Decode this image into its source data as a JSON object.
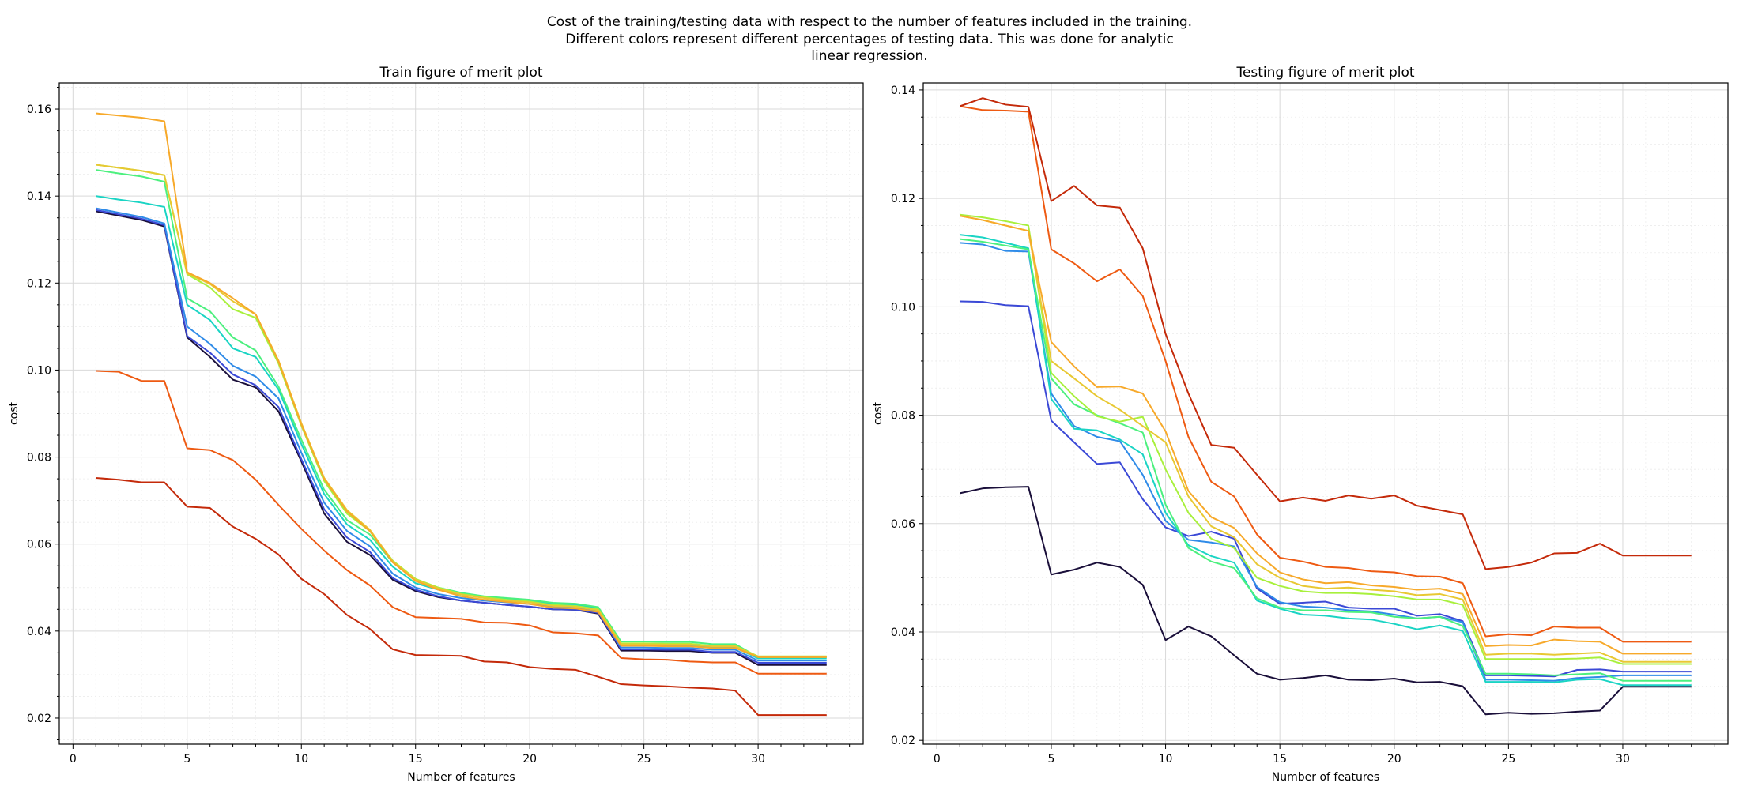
{
  "figure": {
    "suptitle_lines": [
      "Cost of the training/testing data with respect to the number of features included in the training.",
      "Different colors represent different percentages of testing data. This was done for analytic",
      "linear regression."
    ]
  },
  "chart_data": [
    {
      "type": "line",
      "title": "Train figure of merit plot",
      "xlabel": "Number of features",
      "ylabel": "cost",
      "xlim": [
        -0.6,
        34.6
      ],
      "ylim": [
        0.014,
        0.166
      ],
      "xticks": [
        0,
        5,
        10,
        15,
        20,
        25,
        30
      ],
      "yticks": [
        0.02,
        0.04,
        0.06,
        0.08,
        0.1,
        0.12,
        0.14,
        0.16
      ],
      "ytick_labels": [
        "0.02",
        "0.04",
        "0.06",
        "0.08",
        "0.10",
        "0.12",
        "0.14",
        "0.16"
      ],
      "grid": true,
      "x": [
        1,
        2,
        3,
        4,
        5,
        6,
        7,
        8,
        9,
        10,
        11,
        12,
        13,
        14,
        15,
        16,
        17,
        18,
        19,
        20,
        21,
        22,
        23,
        24,
        25,
        26,
        27,
        28,
        29,
        30,
        31,
        32,
        33
      ],
      "series": [
        {
          "color": "#1a0f3a",
          "values": [
            0.1365,
            0.1355,
            0.1345,
            0.133,
            0.1075,
            0.103,
            0.0978,
            0.096,
            0.0905,
            0.079,
            0.067,
            0.0605,
            0.0575,
            0.0518,
            0.0492,
            0.0478,
            0.047,
            0.0465,
            0.046,
            0.0456,
            0.045,
            0.0449,
            0.044,
            0.0355,
            0.0355,
            0.0354,
            0.0354,
            0.035,
            0.035,
            0.0322,
            0.0322,
            0.0322,
            0.0322
          ]
        },
        {
          "color": "#3b49d6",
          "values": [
            0.1368,
            0.1358,
            0.1348,
            0.1333,
            0.1078,
            0.104,
            0.099,
            0.0965,
            0.0915,
            0.0795,
            0.068,
            0.0615,
            0.0582,
            0.0522,
            0.0495,
            0.048,
            0.047,
            0.0465,
            0.046,
            0.0456,
            0.045,
            0.0449,
            0.0442,
            0.0358,
            0.0358,
            0.0357,
            0.0357,
            0.0352,
            0.0352,
            0.0327,
            0.0327,
            0.0327,
            0.0327
          ]
        },
        {
          "color": "#2f8be8",
          "values": [
            0.1372,
            0.1362,
            0.1352,
            0.1337,
            0.11,
            0.106,
            0.101,
            0.0985,
            0.0935,
            0.081,
            0.0695,
            0.063,
            0.0595,
            0.0532,
            0.05,
            0.0485,
            0.0476,
            0.047,
            0.0466,
            0.0462,
            0.0457,
            0.0455,
            0.0447,
            0.0362,
            0.0362,
            0.0361,
            0.0361,
            0.0357,
            0.0357,
            0.0332,
            0.0332,
            0.0332,
            0.0332
          ]
        },
        {
          "color": "#1ad4c4",
          "values": [
            0.14,
            0.1392,
            0.1385,
            0.1375,
            0.115,
            0.1115,
            0.105,
            0.103,
            0.0955,
            0.083,
            0.0715,
            0.0645,
            0.061,
            0.0548,
            0.051,
            0.0495,
            0.0484,
            0.0478,
            0.0474,
            0.047,
            0.0462,
            0.046,
            0.0452,
            0.0368,
            0.0368,
            0.0367,
            0.0367,
            0.0362,
            0.0362,
            0.0337,
            0.0337,
            0.0337,
            0.0337
          ]
        },
        {
          "color": "#4cf07e",
          "values": [
            0.146,
            0.1452,
            0.1445,
            0.1433,
            0.1165,
            0.1135,
            0.1075,
            0.1045,
            0.0962,
            0.084,
            0.0725,
            0.0655,
            0.0622,
            0.0558,
            0.0518,
            0.05,
            0.0488,
            0.048,
            0.0476,
            0.0472,
            0.0465,
            0.0463,
            0.0455,
            0.0376,
            0.0376,
            0.0375,
            0.0375,
            0.037,
            0.037,
            0.034,
            0.034,
            0.034,
            0.034
          ]
        },
        {
          "color": "#a8f03c",
          "values": [
            0.1472,
            0.1465,
            0.1458,
            0.1448,
            0.122,
            0.119,
            0.114,
            0.112,
            0.1015,
            0.0872,
            0.0745,
            0.067,
            0.063,
            0.0562,
            0.052,
            0.05,
            0.0485,
            0.0478,
            0.0472,
            0.0468,
            0.046,
            0.0458,
            0.045,
            0.0372,
            0.0372,
            0.0371,
            0.0371,
            0.0366,
            0.0366,
            0.0342,
            0.0342,
            0.0342,
            0.0342
          ]
        },
        {
          "color": "#e8c832",
          "values": [
            0.1472,
            0.1465,
            0.1458,
            0.1448,
            0.1222,
            0.1198,
            0.1158,
            0.1128,
            0.1022,
            0.0878,
            0.0752,
            0.0678,
            0.0633,
            0.056,
            0.0518,
            0.0498,
            0.0484,
            0.0476,
            0.047,
            0.0466,
            0.0458,
            0.0456,
            0.0448,
            0.037,
            0.037,
            0.0369,
            0.0369,
            0.0365,
            0.0365,
            0.0341,
            0.0341,
            0.0341,
            0.0341
          ]
        },
        {
          "color": "#f7a92a",
          "values": [
            0.159,
            0.1585,
            0.158,
            0.1572,
            0.1225,
            0.12,
            0.1165,
            0.1128,
            0.102,
            0.0875,
            0.075,
            0.0675,
            0.063,
            0.0558,
            0.0515,
            0.0495,
            0.048,
            0.0472,
            0.0467,
            0.0462,
            0.0454,
            0.0452,
            0.0444,
            0.0366,
            0.0366,
            0.0365,
            0.0365,
            0.0361,
            0.0361,
            0.034,
            0.034,
            0.034,
            0.034
          ]
        },
        {
          "color": "#ee5a12",
          "values": [
            0.0998,
            0.0996,
            0.0975,
            0.0975,
            0.082,
            0.0816,
            0.0793,
            0.0748,
            0.069,
            0.0635,
            0.0585,
            0.054,
            0.0505,
            0.0455,
            0.0432,
            0.043,
            0.0428,
            0.042,
            0.0419,
            0.0413,
            0.0397,
            0.0395,
            0.039,
            0.0338,
            0.0335,
            0.0334,
            0.033,
            0.0328,
            0.0328,
            0.0302,
            0.0302,
            0.0302,
            0.0302
          ]
        },
        {
          "color": "#c42a0a",
          "values": [
            0.0752,
            0.0748,
            0.0742,
            0.0742,
            0.0686,
            0.0683,
            0.064,
            0.0612,
            0.0576,
            0.052,
            0.0485,
            0.0437,
            0.0405,
            0.0358,
            0.0345,
            0.0344,
            0.0343,
            0.033,
            0.0328,
            0.0317,
            0.0313,
            0.0311,
            0.0295,
            0.0278,
            0.0275,
            0.0273,
            0.027,
            0.0268,
            0.0263,
            0.0207,
            0.0207,
            0.0207,
            0.0207
          ]
        }
      ]
    },
    {
      "type": "line",
      "title": "Testing figure of merit plot",
      "xlabel": "Number of features",
      "ylabel": "cost",
      "xlim": [
        -0.6,
        34.6
      ],
      "ylim": [
        0.0193,
        0.1413
      ],
      "xticks": [
        0,
        5,
        10,
        15,
        20,
        25,
        30
      ],
      "yticks": [
        0.02,
        0.04,
        0.06,
        0.08,
        0.1,
        0.12,
        0.14
      ],
      "ytick_labels": [
        "0.02",
        "0.04",
        "0.06",
        "0.08",
        "0.10",
        "0.12",
        "0.14"
      ],
      "grid": true,
      "x": [
        1,
        2,
        3,
        4,
        5,
        6,
        7,
        8,
        9,
        10,
        11,
        12,
        13,
        14,
        15,
        16,
        17,
        18,
        19,
        20,
        21,
        22,
        23,
        24,
        25,
        26,
        27,
        28,
        29,
        30,
        31,
        32,
        33
      ],
      "series": [
        {
          "color": "#1a0f3a",
          "values": [
            0.0656,
            0.0665,
            0.0667,
            0.0668,
            0.0506,
            0.0515,
            0.0528,
            0.052,
            0.0487,
            0.0385,
            0.041,
            0.0392,
            0.0357,
            0.0323,
            0.0312,
            0.0315,
            0.032,
            0.0312,
            0.0311,
            0.0314,
            0.0307,
            0.0308,
            0.03,
            0.0248,
            0.0251,
            0.0249,
            0.025,
            0.0253,
            0.0255,
            0.0299,
            0.0299,
            0.0299,
            0.0299
          ]
        },
        {
          "color": "#3b49d6",
          "values": [
            0.101,
            0.1009,
            0.1003,
            0.1001,
            0.079,
            0.075,
            0.071,
            0.0713,
            0.0645,
            0.0593,
            0.0577,
            0.0585,
            0.0572,
            0.048,
            0.0452,
            0.0454,
            0.0456,
            0.0445,
            0.0443,
            0.0443,
            0.043,
            0.0433,
            0.042,
            0.032,
            0.032,
            0.0319,
            0.0318,
            0.033,
            0.0331,
            0.0327,
            0.0327,
            0.0327,
            0.0327
          ]
        },
        {
          "color": "#2f8be8",
          "values": [
            0.1118,
            0.1115,
            0.1103,
            0.1102,
            0.084,
            0.078,
            0.076,
            0.0752,
            0.069,
            0.0605,
            0.057,
            0.0565,
            0.0558,
            0.0483,
            0.0455,
            0.0447,
            0.0445,
            0.044,
            0.0438,
            0.0432,
            0.0425,
            0.0428,
            0.0418,
            0.0312,
            0.0312,
            0.0311,
            0.031,
            0.0315,
            0.0317,
            0.032,
            0.032,
            0.032,
            0.032
          ]
        },
        {
          "color": "#1ad4c4",
          "values": [
            0.1133,
            0.1128,
            0.1118,
            0.1108,
            0.083,
            0.0775,
            0.0772,
            0.0755,
            0.0728,
            0.062,
            0.056,
            0.054,
            0.0528,
            0.0458,
            0.0443,
            0.0432,
            0.043,
            0.0425,
            0.0423,
            0.0415,
            0.0405,
            0.0412,
            0.0402,
            0.0308,
            0.0308,
            0.0308,
            0.0307,
            0.0312,
            0.0313,
            0.0302,
            0.0302,
            0.0302,
            0.0302
          ]
        },
        {
          "color": "#4cf07e",
          "values": [
            0.1125,
            0.112,
            0.1113,
            0.1106,
            0.0868,
            0.082,
            0.08,
            0.0785,
            0.0768,
            0.0635,
            0.0555,
            0.053,
            0.0518,
            0.0462,
            0.0445,
            0.044,
            0.044,
            0.0437,
            0.0436,
            0.0428,
            0.0425,
            0.0428,
            0.0411,
            0.0323,
            0.0323,
            0.0322,
            0.032,
            0.0322,
            0.0324,
            0.031,
            0.031,
            0.031,
            0.031
          ]
        },
        {
          "color": "#a8f03c",
          "values": [
            0.117,
            0.1165,
            0.1158,
            0.115,
            0.0878,
            0.0835,
            0.0798,
            0.0788,
            0.0797,
            0.07,
            0.062,
            0.0572,
            0.0555,
            0.05,
            0.0485,
            0.0475,
            0.0472,
            0.0472,
            0.047,
            0.0466,
            0.046,
            0.046,
            0.045,
            0.035,
            0.035,
            0.035,
            0.035,
            0.0351,
            0.0353,
            0.0341,
            0.0341,
            0.0341,
            0.0341
          ]
        },
        {
          "color": "#e8c832",
          "values": [
            0.1168,
            0.116,
            0.115,
            0.114,
            0.09,
            0.0868,
            0.0835,
            0.081,
            0.078,
            0.075,
            0.065,
            0.0595,
            0.0575,
            0.0525,
            0.05,
            0.0485,
            0.048,
            0.0482,
            0.0478,
            0.0475,
            0.0468,
            0.047,
            0.046,
            0.0358,
            0.036,
            0.036,
            0.0358,
            0.036,
            0.0362,
            0.0345,
            0.0345,
            0.0345,
            0.0345
          ]
        },
        {
          "color": "#f7a92a",
          "values": [
            0.1168,
            0.116,
            0.115,
            0.114,
            0.0935,
            0.089,
            0.0852,
            0.0853,
            0.084,
            0.077,
            0.066,
            0.0612,
            0.0592,
            0.0545,
            0.051,
            0.0497,
            0.049,
            0.0492,
            0.0486,
            0.0483,
            0.0478,
            0.048,
            0.047,
            0.0374,
            0.0376,
            0.0375,
            0.0386,
            0.0383,
            0.0382,
            0.036,
            0.036,
            0.036,
            0.036
          ]
        },
        {
          "color": "#ee5a12",
          "values": [
            0.137,
            0.1363,
            0.1362,
            0.136,
            0.1106,
            0.108,
            0.1047,
            0.1069,
            0.102,
            0.09,
            0.076,
            0.0677,
            0.065,
            0.058,
            0.0537,
            0.053,
            0.052,
            0.0518,
            0.0512,
            0.051,
            0.0503,
            0.0502,
            0.049,
            0.0392,
            0.0396,
            0.0394,
            0.041,
            0.0408,
            0.0408,
            0.0382,
            0.0382,
            0.0382,
            0.0382
          ]
        },
        {
          "color": "#c42a0a",
          "values": [
            0.137,
            0.1385,
            0.1373,
            0.1369,
            0.1195,
            0.1223,
            0.1187,
            0.1183,
            0.1108,
            0.095,
            0.084,
            0.0745,
            0.074,
            0.069,
            0.0641,
            0.0648,
            0.0642,
            0.0652,
            0.0646,
            0.0652,
            0.0633,
            0.0625,
            0.0617,
            0.0516,
            0.052,
            0.0528,
            0.0545,
            0.0546,
            0.0563,
            0.0541,
            0.0541,
            0.0541,
            0.0541
          ]
        }
      ]
    }
  ]
}
